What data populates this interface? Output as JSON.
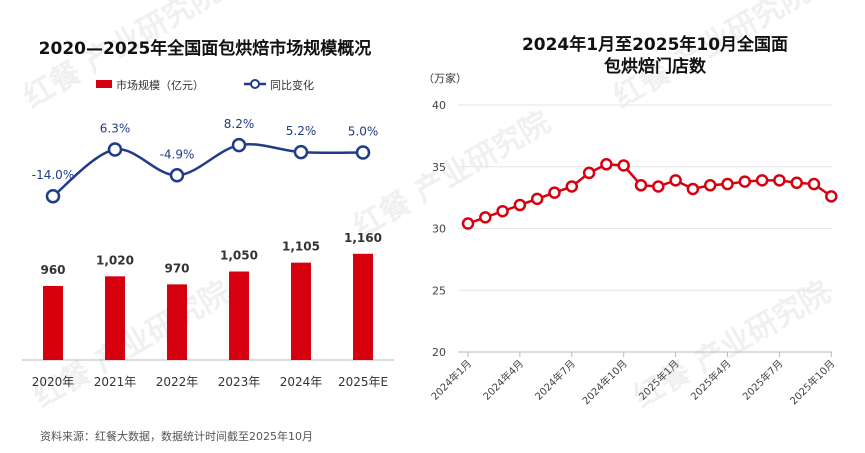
{
  "watermark": "红餐 产业研究院",
  "left_title": "2020—2025年全国面包烘焙市场规模概况",
  "right_title_line1": "2024年1月至2025年10月全国面",
  "right_title_line2": "包烘焙门店数",
  "source": "资料来源：红餐大数据，数据统计时间截至2025年10月",
  "colors": {
    "bar": "#d7000f",
    "line_blue": "#1f3c88",
    "line_red": "#d7000f",
    "axis": "#bbbbbb",
    "grid": "#e6e6e6"
  },
  "chart_data": [
    {
      "type": "bar",
      "title": "2020—2025年全国面包烘焙市场规模概况",
      "categories": [
        "2020年",
        "2021年",
        "2022年",
        "2023年",
        "2024年",
        "2025年E"
      ],
      "series": [
        {
          "name": "市场规模（亿元）",
          "type": "bar",
          "values": [
            960,
            1020,
            970,
            1050,
            1105,
            1160
          ],
          "labels": [
            "960",
            "1,020",
            "970",
            "1,050",
            "1,105",
            "1,160"
          ]
        },
        {
          "name": "同比变化",
          "type": "line",
          "values": [
            -14.0,
            6.3,
            -4.9,
            8.2,
            5.2,
            5.0
          ],
          "labels": [
            "-14.0%",
            "6.3%",
            "-4.9%",
            "8.2%",
            "5.2%",
            "5.0%"
          ]
        }
      ],
      "legend": "top-left"
    },
    {
      "type": "line",
      "title": "2024年1月至2025年10月全国面包烘焙门店数",
      "ylabel": "（万家）",
      "ylim": [
        20,
        40
      ],
      "yticks": [
        20,
        25,
        30,
        35,
        40
      ],
      "x": [
        "2024-01",
        "2024-02",
        "2024-03",
        "2024-04",
        "2024-05",
        "2024-06",
        "2024-07",
        "2024-08",
        "2024-09",
        "2024-10",
        "2024-11",
        "2024-12",
        "2025-01",
        "2025-02",
        "2025-03",
        "2025-04",
        "2025-05",
        "2025-06",
        "2025-07",
        "2025-08",
        "2025-09",
        "2025-10"
      ],
      "xtick_labels": [
        "2024年1月",
        "2024年4月",
        "2024年7月",
        "2024年10月",
        "2025年1月",
        "2025年4月",
        "2025年7月",
        "2025年10月"
      ],
      "xtick_index": [
        0,
        3,
        6,
        9,
        12,
        15,
        18,
        21
      ],
      "values": [
        30.4,
        30.9,
        31.4,
        31.9,
        32.4,
        32.9,
        33.4,
        34.5,
        35.2,
        35.1,
        33.5,
        33.4,
        33.9,
        33.2,
        33.5,
        33.6,
        33.8,
        33.9,
        33.9,
        33.7,
        33.6,
        32.6
      ],
      "grid": true
    }
  ]
}
